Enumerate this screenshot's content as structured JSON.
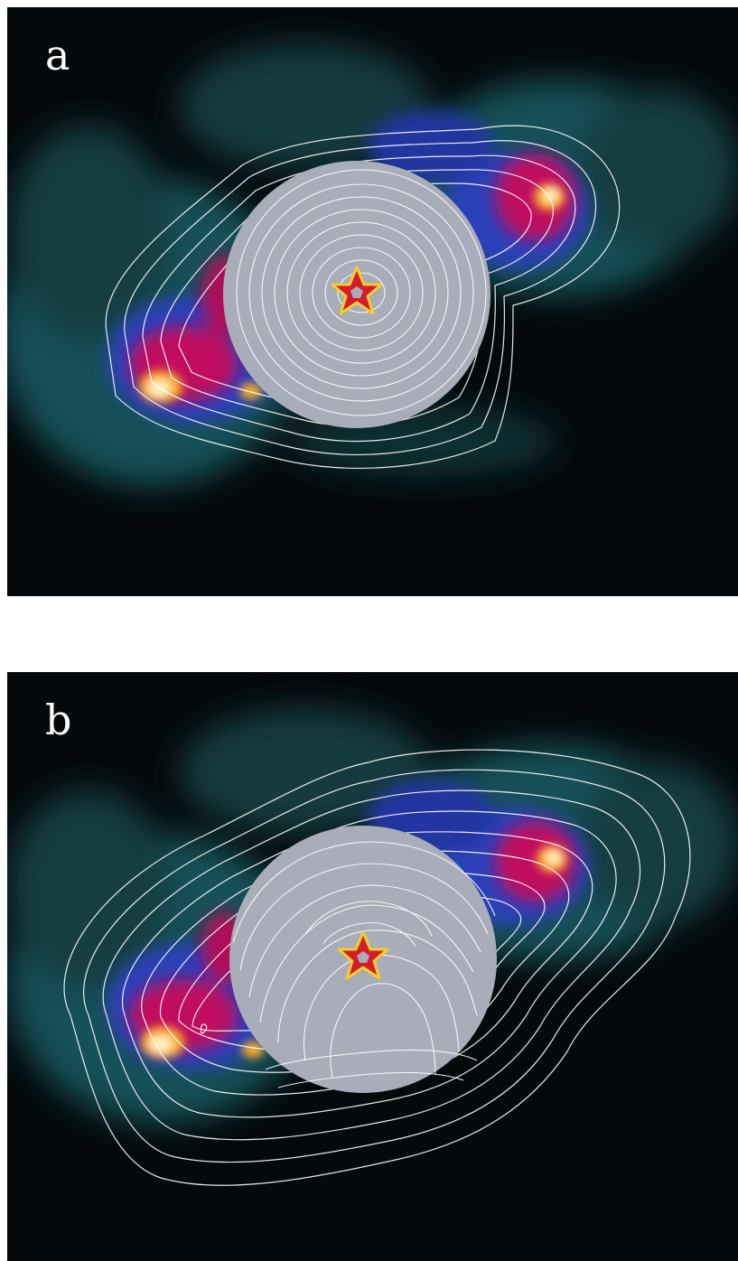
{
  "panels": [
    {
      "label": "a"
    },
    {
      "label": "b"
    }
  ],
  "colors": {
    "background": "#05090b",
    "teal_emission": "#1e5a62",
    "blue_emission": "#2a3fb8",
    "magenta_emission": "#c0105e",
    "hot_core": "#fff2a8",
    "occulting_disk": "#a9acb9",
    "contour": "#ffffff",
    "star_fill": "#d41c2c",
    "star_outline": "#f0cf2a"
  },
  "icons": {
    "center_marker": "star-icon",
    "occulter": "occulting-disk"
  }
}
